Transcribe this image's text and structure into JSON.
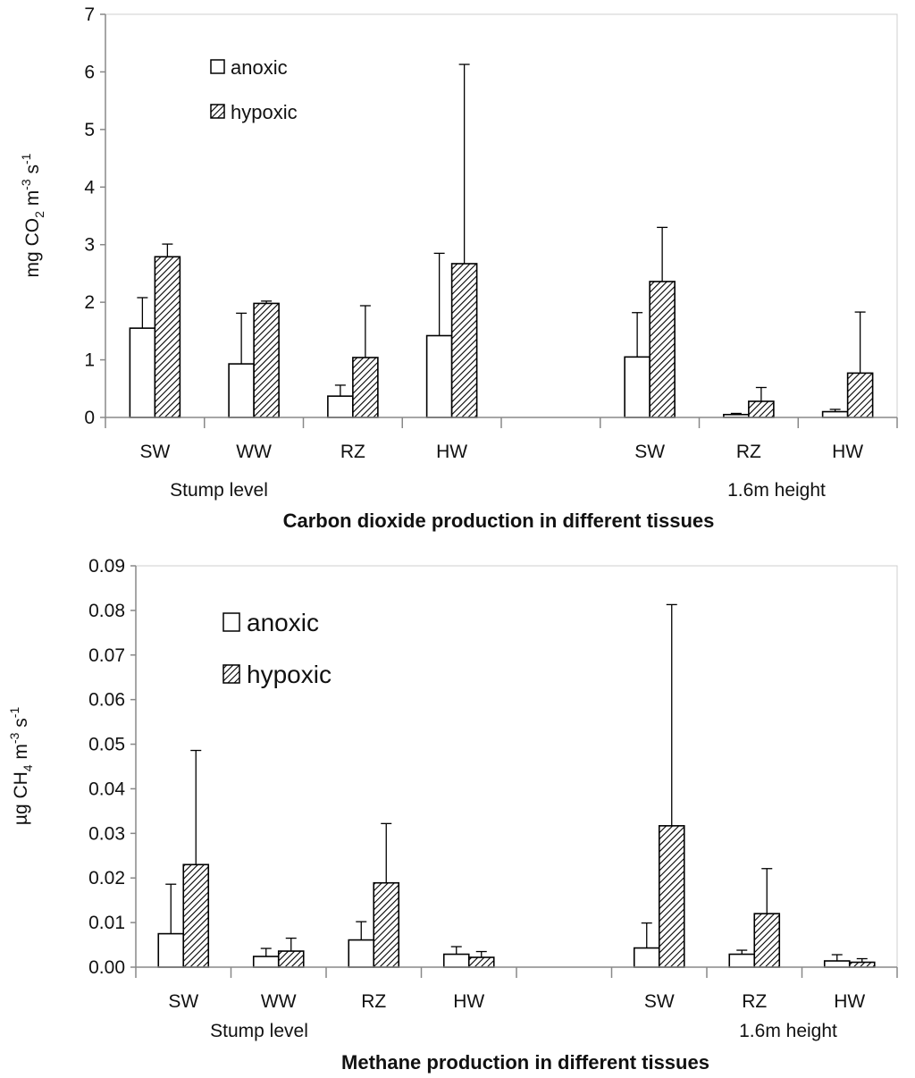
{
  "chart_data": [
    {
      "type": "bar",
      "title": "Carbon dioxide production in different tissues",
      "ylabel": {
        "base": "mg CO",
        "sub": "2",
        "mid": " m",
        "sup1": "-3",
        "mid2": " s",
        "sup2": "-1"
      },
      "ylim": [
        0,
        7
      ],
      "yticks": [
        "0",
        "1",
        "2",
        "3",
        "4",
        "5",
        "6",
        "7"
      ],
      "ytick_values": [
        0,
        1,
        2,
        3,
        4,
        5,
        6,
        7
      ],
      "categories": [
        "SW",
        "WW",
        "RZ",
        "HW",
        "",
        "SW",
        "RZ",
        "HW"
      ],
      "group_labels": [
        "Stump level",
        "1.6m height"
      ],
      "series": [
        {
          "name": "anoxic",
          "pattern": "open",
          "values": [
            1.55,
            0.93,
            0.37,
            1.42,
            null,
            1.05,
            0.05,
            0.1
          ],
          "errors": [
            0.53,
            0.88,
            0.19,
            1.43,
            null,
            0.77,
            0.02,
            0.04
          ]
        },
        {
          "name": "hypoxic",
          "pattern": "hatched",
          "values": [
            2.79,
            1.98,
            1.04,
            2.67,
            null,
            2.36,
            0.28,
            0.77
          ],
          "errors": [
            0.22,
            0.04,
            0.9,
            3.46,
            null,
            0.94,
            0.24,
            1.06
          ]
        }
      ]
    },
    {
      "type": "bar",
      "title": "Methane production in different tissues",
      "ylabel": {
        "base": "µg CH",
        "sub": "4",
        "mid": " m",
        "sup1": "-3",
        "mid2": " s",
        "sup2": "-1"
      },
      "ylim": [
        0,
        0.09
      ],
      "yticks": [
        "0.00",
        "0.01",
        "0.02",
        "0.03",
        "0.04",
        "0.05",
        "0.06",
        "0.07",
        "0.08",
        "0.09"
      ],
      "ytick_values": [
        0,
        0.01,
        0.02,
        0.03,
        0.04,
        0.05,
        0.06,
        0.07,
        0.08,
        0.09
      ],
      "categories": [
        "SW",
        "WW",
        "RZ",
        "HW",
        "",
        "SW",
        "RZ",
        "HW"
      ],
      "group_labels": [
        "Stump level",
        "1.6m height"
      ],
      "series": [
        {
          "name": "anoxic",
          "pattern": "open",
          "values": [
            0.0075,
            0.0024,
            0.0061,
            0.0029,
            null,
            0.0043,
            0.0029,
            0.0014
          ],
          "errors": [
            0.0111,
            0.0018,
            0.0041,
            0.0017,
            null,
            0.0056,
            0.0009,
            0.0014
          ]
        },
        {
          "name": "hypoxic",
          "pattern": "hatched",
          "values": [
            0.023,
            0.0036,
            0.0189,
            0.0022,
            null,
            0.0317,
            0.012,
            0.0011
          ],
          "errors": [
            0.0256,
            0.0029,
            0.0133,
            0.0013,
            null,
            0.0496,
            0.0101,
            0.0008
          ]
        }
      ]
    }
  ]
}
